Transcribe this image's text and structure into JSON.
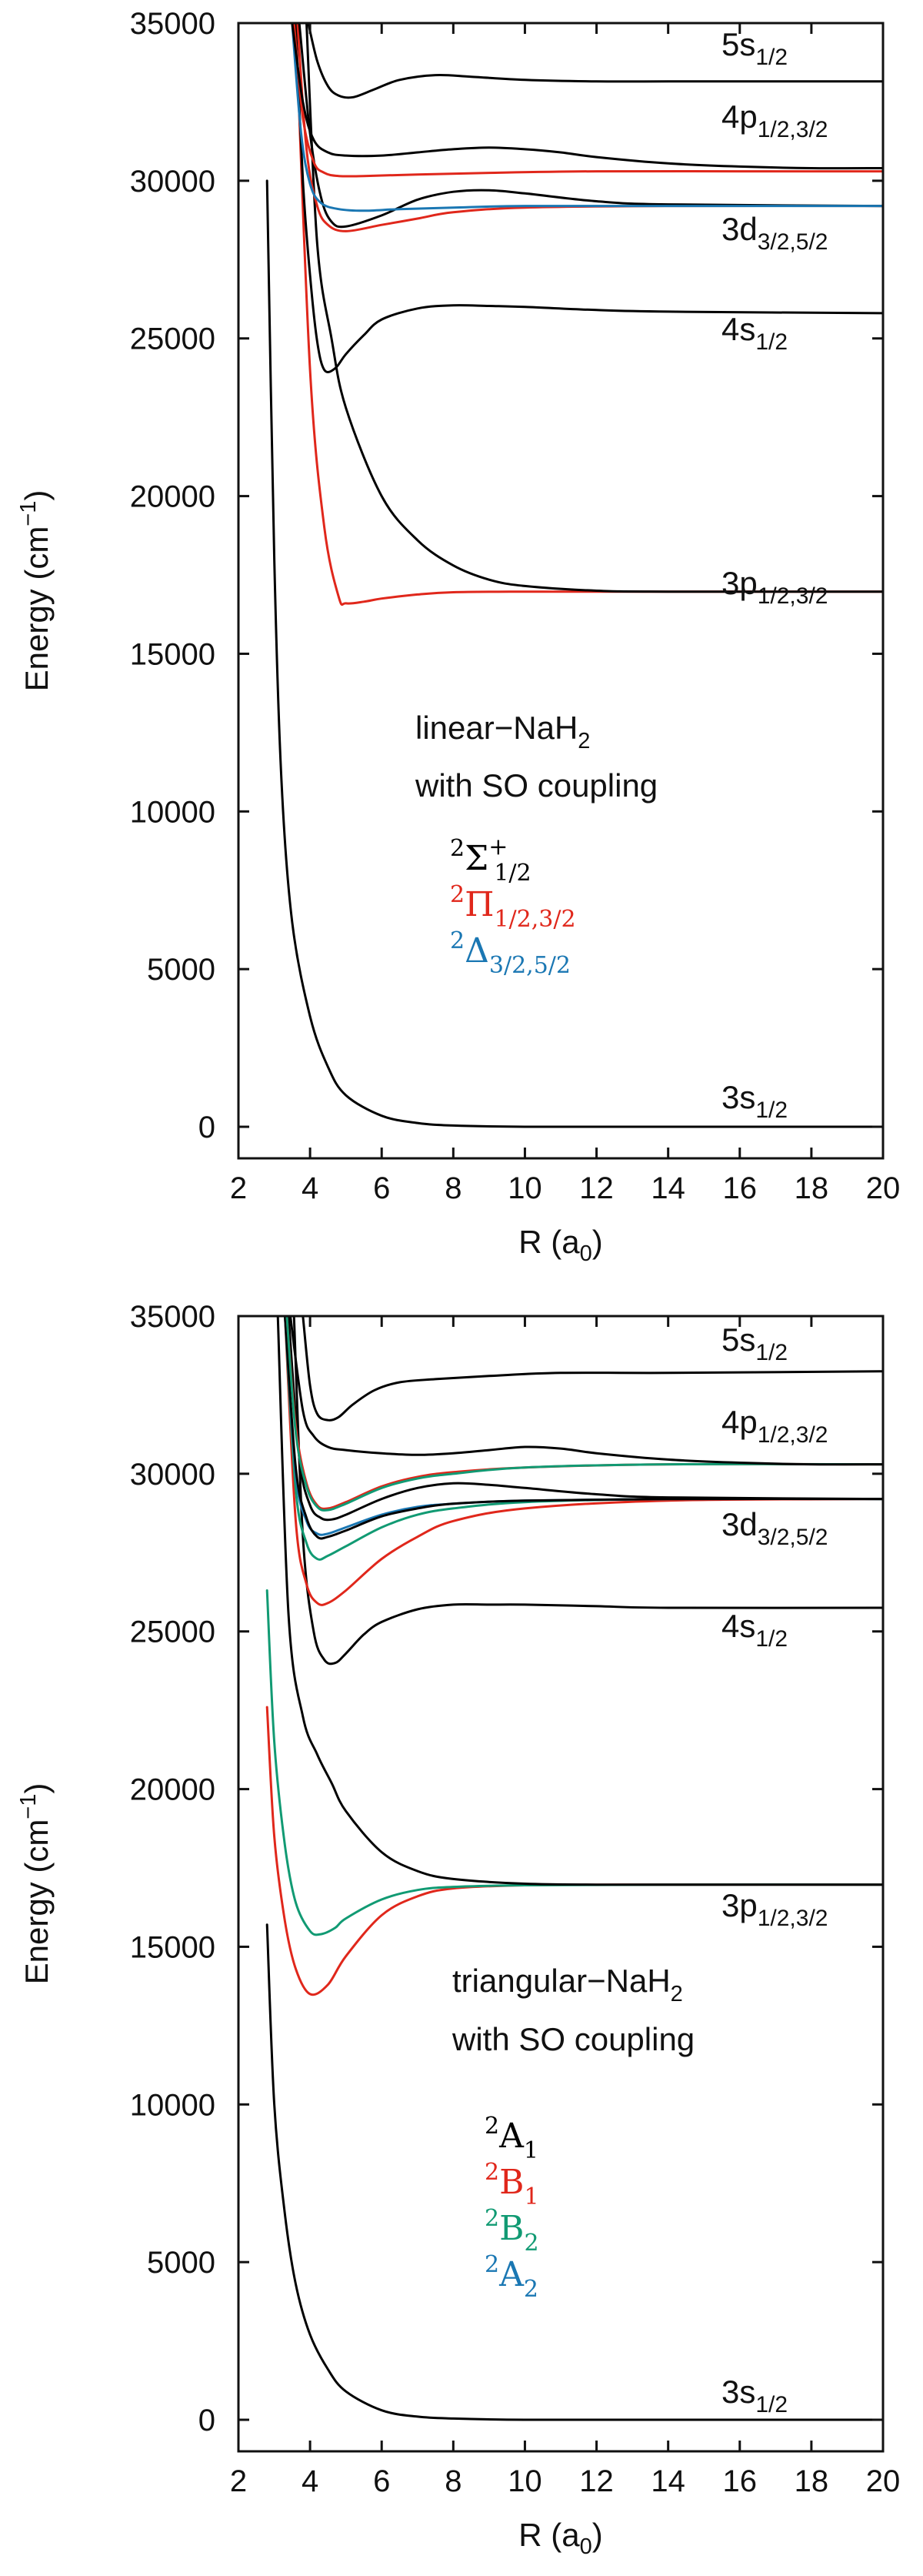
{
  "colors": {
    "sigma": "#000000",
    "pi": "#e0271b",
    "delta": "#1a77b3",
    "b2": "#119a73",
    "a2": "#1a77b3"
  },
  "chart_data": [
    {
      "type": "line",
      "title": "",
      "xlabel": "R (a",
      "xlabel_sub": "0",
      "xlabel_end": ")",
      "ylabel": "Energy (cm",
      "ylabel_sup": "−1",
      "ylabel_end": ")",
      "xlim": [
        2,
        20
      ],
      "ylim": [
        -1000,
        35000
      ],
      "xticks": [
        "2",
        "4",
        "6",
        "8",
        "10",
        "12",
        "14",
        "16",
        "18",
        "20"
      ],
      "yticks": [
        "0",
        "5000",
        "10000",
        "15000",
        "20000",
        "25000",
        "30000",
        "35000"
      ],
      "annotation": [
        "linear−NaH",
        "2",
        " with SO coupling"
      ],
      "asymptotes": [
        {
          "main": "5s",
          "sub": "1/2"
        },
        {
          "main": "4p",
          "sub": "1/2,3/2"
        },
        {
          "main": "3d",
          "sub": "3/2,5/2"
        },
        {
          "main": "4s",
          "sub": "1/2"
        },
        {
          "main": "3p",
          "sub": "1/2,3/2"
        },
        {
          "main": "3s",
          "sub": "1/2"
        }
      ],
      "legend": [
        {
          "sup": "2",
          "sym": "Σ",
          "sup2": "+",
          "sub": "1/2",
          "color": "#000000"
        },
        {
          "sup": "2",
          "sym": "Π",
          "sup2": "",
          "sub": "1/2,3/2",
          "color": "#e0271b"
        },
        {
          "sup": "2",
          "sym": "Δ",
          "sup2": "",
          "sub": "3/2,5/2",
          "color": "#1a77b3"
        }
      ],
      "series": [
        {
          "name": "3s 2Σ+1/2",
          "color": "#000000",
          "x": [
            2.8,
            3.0,
            3.2,
            3.5,
            4.0,
            4.5,
            5.0,
            6.0,
            7.0,
            8.0,
            10.0,
            14.0,
            20.0
          ],
          "y": [
            30000,
            18000,
            11000,
            6500,
            3500,
            1900,
            1000,
            350,
            120,
            40,
            0,
            0,
            0
          ]
        },
        {
          "name": "3p 2Π",
          "color": "#e0271b",
          "x": [
            3.6,
            4.0,
            4.4,
            4.8,
            5.0,
            5.5,
            6.0,
            7.0,
            8.0,
            10.0,
            14.0,
            20.0
          ],
          "y": [
            35000,
            24000,
            19000,
            16800,
            16600,
            16650,
            16750,
            16880,
            16950,
            16970,
            16970,
            16970
          ]
        },
        {
          "name": "3p 2Σ+",
          "color": "#000000",
          "x": [
            3.9,
            4.2,
            4.6,
            5.0,
            6.0,
            7.0,
            8.0,
            9.0,
            10.0,
            12.0,
            14.0,
            20.0
          ],
          "y": [
            35000,
            28000,
            25000,
            22800,
            20000,
            18600,
            17800,
            17350,
            17150,
            17000,
            16970,
            16970
          ]
        },
        {
          "name": "4s 2Σ+",
          "color": "#000000",
          "x": [
            3.6,
            3.8,
            4.0,
            4.2,
            4.4,
            4.7,
            5.0,
            5.5,
            6.0,
            7.0,
            8.0,
            9.0,
            10.0,
            12.0,
            14.0,
            20.0
          ],
          "y": [
            35000,
            30000,
            27000,
            24900,
            24000,
            24050,
            24500,
            25100,
            25600,
            25950,
            26050,
            26030,
            26000,
            25900,
            25850,
            25800
          ]
        },
        {
          "name": "3d 2Π",
          "color": "#e0271b",
          "x": [
            3.65,
            3.9,
            4.2,
            4.5,
            5.0,
            6.0,
            7.0,
            8.0,
            10.0,
            14.0,
            20.0
          ],
          "y": [
            35000,
            31000,
            29200,
            28600,
            28400,
            28600,
            28800,
            29000,
            29150,
            29200,
            29200
          ]
        },
        {
          "name": "3d 2Σ+",
          "color": "#000000",
          "x": [
            3.7,
            4.0,
            4.3,
            4.6,
            5.0,
            6.0,
            7.0,
            8.0,
            9.0,
            10.0,
            12.0,
            14.0,
            20.0
          ],
          "y": [
            35000,
            31500,
            29500,
            28700,
            28550,
            28900,
            29400,
            29650,
            29700,
            29600,
            29350,
            29250,
            29200
          ]
        },
        {
          "name": "3d 2Δ",
          "color": "#1a77b3",
          "x": [
            3.5,
            3.75,
            4.0,
            4.3,
            4.8,
            5.5,
            6.5,
            8.0,
            10.0,
            14.0,
            20.0
          ],
          "y": [
            35000,
            31500,
            29900,
            29300,
            29100,
            29050,
            29100,
            29150,
            29200,
            29200,
            29200
          ]
        },
        {
          "name": "4p 2Π",
          "color": "#e0271b",
          "x": [
            3.55,
            3.8,
            4.1,
            4.4,
            4.8,
            5.5,
            7.0,
            9.0,
            12.0,
            16.0,
            20.0
          ],
          "y": [
            35000,
            32000,
            30600,
            30250,
            30150,
            30150,
            30200,
            30250,
            30300,
            30300,
            30300
          ]
        },
        {
          "name": "4p 2Σ+",
          "color": "#000000",
          "x": [
            3.5,
            3.8,
            4.1,
            4.5,
            5.0,
            6.0,
            7.0,
            8.0,
            9.0,
            10.0,
            11.0,
            12.0,
            14.0,
            16.0,
            18.0,
            20.0
          ],
          "y": [
            35000,
            32500,
            31300,
            30900,
            30800,
            30800,
            30900,
            31000,
            31050,
            31000,
            30900,
            30750,
            30550,
            30450,
            30400,
            30400
          ]
        },
        {
          "name": "5s 2Σ+",
          "color": "#000000",
          "x": [
            3.95,
            4.2,
            4.5,
            4.8,
            5.2,
            5.8,
            6.5,
            7.5,
            8.5,
            10.0,
            12.0,
            14.0,
            16.0,
            20.0
          ],
          "y": [
            35000,
            33800,
            33000,
            32700,
            32650,
            32900,
            33200,
            33350,
            33300,
            33200,
            33150,
            33150,
            33150,
            33150
          ]
        }
      ]
    },
    {
      "type": "line",
      "title": "",
      "xlabel": "R (a",
      "xlabel_sub": "0",
      "xlabel_end": ")",
      "ylabel": "Energy (cm",
      "ylabel_sup": "−1",
      "ylabel_end": ")",
      "xlim": [
        2,
        20
      ],
      "ylim": [
        -1000,
        35000
      ],
      "xticks": [
        "2",
        "4",
        "6",
        "8",
        "10",
        "12",
        "14",
        "16",
        "18",
        "20"
      ],
      "yticks": [
        "0",
        "5000",
        "10000",
        "15000",
        "20000",
        "25000",
        "30000",
        "35000"
      ],
      "annotation": [
        "triangular−NaH",
        "2",
        " with SO coupling"
      ],
      "asymptotes": [
        {
          "main": "5s",
          "sub": "1/2"
        },
        {
          "main": "4p",
          "sub": "1/2,3/2"
        },
        {
          "main": "3d",
          "sub": "3/2,5/2"
        },
        {
          "main": "4s",
          "sub": "1/2"
        },
        {
          "main": "3p",
          "sub": "1/2,3/2"
        },
        {
          "main": "3s",
          "sub": "1/2"
        }
      ],
      "legend": [
        {
          "sup": "2",
          "sym": "A",
          "sup2": "",
          "sub": "1",
          "color": "#000000"
        },
        {
          "sup": "2",
          "sym": "B",
          "sup2": "",
          "sub": "1",
          "color": "#e0271b"
        },
        {
          "sup": "2",
          "sym": "B",
          "sup2": "",
          "sub": "2",
          "color": "#119a73"
        },
        {
          "sup": "2",
          "sym": "A",
          "sup2": "",
          "sub": "2",
          "color": "#1a77b3"
        }
      ],
      "series": [
        {
          "name": "3s 2A1",
          "color": "#000000",
          "x": [
            2.8,
            3.0,
            3.3,
            3.6,
            4.0,
            4.5,
            5.0,
            6.0,
            7.0,
            8.0,
            10.0,
            14.0,
            20.0
          ],
          "y": [
            15700,
            10000,
            6500,
            4300,
            2700,
            1600,
            900,
            300,
            100,
            40,
            0,
            0,
            0
          ]
        },
        {
          "name": "3p 2B1",
          "color": "#e0271b",
          "x": [
            2.8,
            3.0,
            3.3,
            3.6,
            4.0,
            4.5,
            5.0,
            6.0,
            7.0,
            8.0,
            10.0,
            14.0,
            20.0
          ],
          "y": [
            22600,
            18500,
            15800,
            14300,
            13500,
            13800,
            14700,
            16000,
            16600,
            16850,
            16950,
            16970,
            16970
          ]
        },
        {
          "name": "3p 2B2",
          "color": "#119a73",
          "x": [
            2.8,
            3.0,
            3.3,
            3.6,
            4.0,
            4.3,
            4.7,
            5.0,
            6.0,
            7.0,
            8.0,
            10.0,
            14.0,
            20.0
          ],
          "y": [
            26300,
            21500,
            18200,
            16400,
            15500,
            15400,
            15600,
            15900,
            16500,
            16800,
            16900,
            16950,
            16970,
            16970
          ]
        },
        {
          "name": "3p 2A1",
          "color": "#000000",
          "x": [
            3.1,
            3.4,
            3.8,
            4.2,
            4.6,
            5.0,
            6.0,
            7.0,
            8.0,
            10.0,
            12.0,
            14.0,
            20.0
          ],
          "y": [
            35000,
            25500,
            22300,
            21100,
            20200,
            19300,
            18000,
            17400,
            17150,
            17000,
            16970,
            16970,
            16970
          ]
        },
        {
          "name": "4s 2A1",
          "color": "#000000",
          "x": [
            3.55,
            3.8,
            4.1,
            4.4,
            4.7,
            5.0,
            5.5,
            6.0,
            7.0,
            8.0,
            9.0,
            10.0,
            12.0,
            14.0,
            20.0
          ],
          "y": [
            35000,
            28000,
            25000,
            24100,
            24000,
            24300,
            24900,
            25300,
            25700,
            25850,
            25850,
            25850,
            25800,
            25750,
            25750
          ]
        },
        {
          "name": "3d 2B1",
          "color": "#e0271b",
          "x": [
            3.3,
            3.6,
            3.9,
            4.2,
            4.5,
            5.0,
            6.0,
            7.0,
            8.0,
            10.0,
            14.0,
            20.0
          ],
          "y": [
            35000,
            28500,
            26500,
            25900,
            25900,
            26300,
            27300,
            28000,
            28500,
            28900,
            29150,
            29200
          ]
        },
        {
          "name": "3d 2B2",
          "color": "#119a73",
          "x": [
            3.3,
            3.6,
            3.9,
            4.2,
            4.5,
            5.0,
            6.0,
            7.0,
            8.0,
            10.0,
            14.0,
            20.0
          ],
          "y": [
            35000,
            29500,
            27800,
            27300,
            27400,
            27700,
            28300,
            28700,
            28900,
            29100,
            29200,
            29200
          ]
        },
        {
          "name": "3d 2A2",
          "color": "#1a77b3",
          "x": [
            3.3,
            3.6,
            3.9,
            4.2,
            4.5,
            5.0,
            6.0,
            7.0,
            8.0,
            10.0,
            14.0,
            20.0
          ],
          "y": [
            35000,
            30000,
            28500,
            28100,
            28100,
            28300,
            28700,
            28950,
            29050,
            29150,
            29200,
            29200
          ]
        },
        {
          "name": "3d 2A1 (a)",
          "color": "#000000",
          "x": [
            3.3,
            3.6,
            3.9,
            4.2,
            4.5,
            5.0,
            6.0,
            7.0,
            8.0,
            10.0,
            14.0,
            20.0
          ],
          "y": [
            35000,
            30200,
            28600,
            28000,
            28000,
            28200,
            28650,
            28900,
            29050,
            29150,
            29200,
            29200
          ]
        },
        {
          "name": "3d 2A1 (b)",
          "color": "#000000",
          "x": [
            3.4,
            3.7,
            4.0,
            4.3,
            4.6,
            5.0,
            6.0,
            7.0,
            8.0,
            9.0,
            10.0,
            12.0,
            14.0,
            20.0
          ],
          "y": [
            35000,
            30500,
            29000,
            28600,
            28550,
            28700,
            29200,
            29550,
            29700,
            29650,
            29550,
            29350,
            29250,
            29200
          ]
        },
        {
          "name": "4p 2B1",
          "color": "#e0271b",
          "x": [
            3.35,
            3.6,
            3.9,
            4.2,
            4.5,
            5.0,
            6.0,
            7.0,
            8.0,
            10.0,
            14.0,
            20.0
          ],
          "y": [
            35000,
            31500,
            29700,
            29000,
            28900,
            29100,
            29600,
            29900,
            30050,
            30200,
            30300,
            30300
          ]
        },
        {
          "name": "4p 2B2",
          "color": "#119a73",
          "x": [
            3.35,
            3.6,
            3.9,
            4.2,
            4.5,
            5.0,
            6.0,
            7.0,
            8.0,
            10.0,
            14.0,
            20.0
          ],
          "y": [
            35000,
            31300,
            29600,
            28950,
            28850,
            29050,
            29550,
            29850,
            30000,
            30200,
            30300,
            30300
          ]
        },
        {
          "name": "4p 2A1",
          "color": "#000000",
          "x": [
            3.45,
            3.8,
            4.1,
            4.5,
            5.0,
            6.0,
            7.0,
            8.0,
            9.0,
            10.0,
            11.0,
            12.0,
            14.0,
            16.0,
            18.0,
            20.0
          ],
          "y": [
            35000,
            32000,
            31200,
            30850,
            30750,
            30650,
            30600,
            30650,
            30750,
            30850,
            30800,
            30650,
            30450,
            30350,
            30300,
            30300
          ]
        },
        {
          "name": "5s 2A1",
          "color": "#000000",
          "x": [
            3.8,
            4.0,
            4.2,
            4.5,
            4.8,
            5.2,
            5.8,
            6.5,
            7.5,
            9.0,
            11.0,
            14.0,
            20.0
          ],
          "y": [
            35000,
            32800,
            31900,
            31700,
            31800,
            32200,
            32650,
            32900,
            33000,
            33100,
            33200,
            33200,
            33250
          ]
        }
      ]
    }
  ]
}
